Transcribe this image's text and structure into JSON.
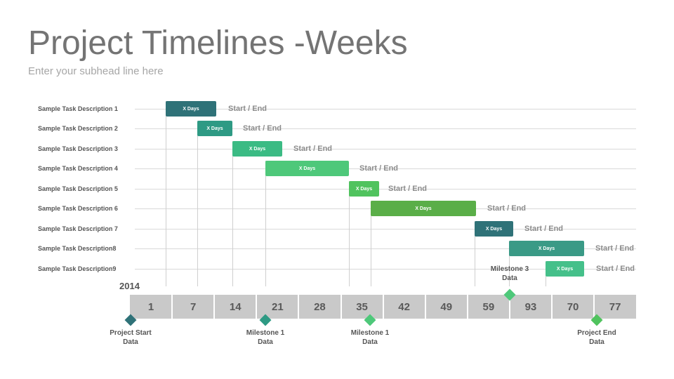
{
  "title": "Project Timelines -Weeks",
  "subtitle": "Enter your subhead line here",
  "year": "2014",
  "tasks": [
    {
      "label": "Sample Task Description 1",
      "bar": "X Days",
      "note": "Start / End",
      "color": "#2f7278"
    },
    {
      "label": "Sample Task Description 2",
      "bar": "X Days",
      "note": "Start / End",
      "color": "#2e9a84"
    },
    {
      "label": "Sample Task Description 3",
      "bar": "X Days",
      "note": "Start / End",
      "color": "#3bbb84"
    },
    {
      "label": "Sample Task Description 4",
      "bar": "X Days",
      "note": "Start / End",
      "color": "#4ec87a"
    },
    {
      "label": "Sample Task Description 5",
      "bar": "X Days",
      "note": "Start / End",
      "color": "#50c35e"
    },
    {
      "label": "Sample Task Description 6",
      "bar": "X Days",
      "note": "Start / End",
      "color": "#5aae48"
    },
    {
      "label": "Sample Task Description 7",
      "bar": "X Days",
      "note": "Start / End",
      "color": "#2f7278"
    },
    {
      "label": "Sample Task Description8",
      "bar": "X Days",
      "note": "Start / End",
      "color": "#3a9a86"
    },
    {
      "label": "Sample Task Description9",
      "bar": "X Days",
      "note": "Start / End",
      "color": "#45c08a"
    }
  ],
  "weeks": [
    "1",
    "7",
    "14",
    "21",
    "28",
    "35",
    "42",
    "49",
    "59",
    "93",
    "70",
    "77"
  ],
  "milestones": [
    {
      "line1": "Project Start",
      "line2": "Data",
      "color": "#2f7278"
    },
    {
      "line1": "Milestone 1",
      "line2": "Data",
      "color": "#2e9a84"
    },
    {
      "line1": "Milestone 1",
      "line2": "Data",
      "color": "#4ec87a"
    },
    {
      "line1": "Milestone 3",
      "line2": "Data",
      "color": "#4ec87a"
    },
    {
      "line1": "Project End",
      "line2": "Data",
      "color": "#50c35e"
    }
  ]
}
